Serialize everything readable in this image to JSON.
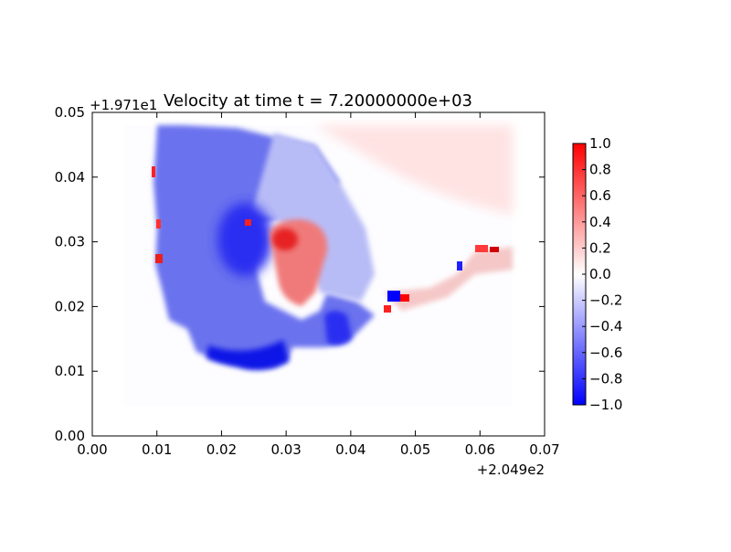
{
  "chart_data": {
    "type": "heatmap",
    "title": "Velocity at time t = 7.20000000e+03",
    "x_offset_label": "+2.049e2",
    "y_offset_label": "+1.971e1",
    "xlim": [
      0.0,
      0.07
    ],
    "ylim": [
      0.0,
      0.05
    ],
    "x_ticks": [
      "0.00",
      "0.01",
      "0.02",
      "0.03",
      "0.04",
      "0.05",
      "0.06",
      "0.07"
    ],
    "y_ticks": [
      "0.00",
      "0.01",
      "0.02",
      "0.03",
      "0.04",
      "0.05"
    ],
    "colorbar": {
      "cmap": "bwr",
      "vmin": -1.0,
      "vmax": 1.0,
      "ticks": [
        "1.0",
        "0.8",
        "0.6",
        "0.4",
        "0.2",
        "0.0",
        "−0.2",
        "−0.4",
        "−0.6",
        "−0.8",
        "−1.0"
      ]
    },
    "field_extent": {
      "x": [
        0.005,
        0.065
      ],
      "y": [
        0.0,
        0.048
      ]
    },
    "features": [
      {
        "kind": "negative-region",
        "x": [
          0.01,
          0.035
        ],
        "y": [
          0.012,
          0.048
        ],
        "value": -0.5
      },
      {
        "kind": "strong-negative-core",
        "x": 0.024,
        "y": 0.03,
        "value": -0.9
      },
      {
        "kind": "strong-negative-band",
        "x": [
          0.018,
          0.03
        ],
        "y": 0.012,
        "value": -0.9
      },
      {
        "kind": "positive-region",
        "x": [
          0.028,
          0.035
        ],
        "y": [
          0.02,
          0.032
        ],
        "value": 0.4
      },
      {
        "kind": "weak-positive-region",
        "x": [
          0.035,
          0.065
        ],
        "y": [
          0.04,
          0.048
        ],
        "value": 0.15
      },
      {
        "kind": "mixed-edge",
        "x": [
          0.045,
          0.065
        ],
        "y": [
          0.02,
          0.03
        ],
        "value": 0.5
      }
    ],
    "grid": false
  }
}
